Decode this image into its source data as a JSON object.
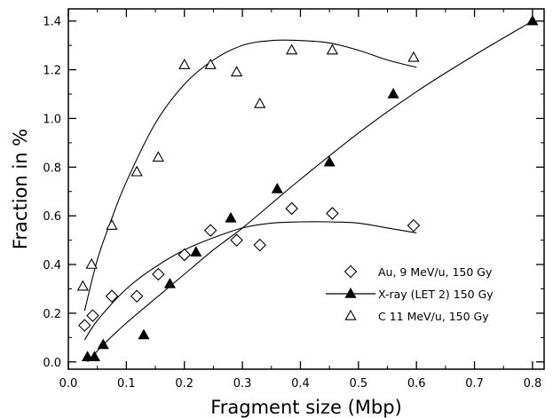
{
  "chart_data": {
    "type": "scatter",
    "title": "",
    "xlabel": "Fragment size (Mbp)",
    "ylabel": "Fraction in %",
    "xlim": [
      0.0,
      0.82
    ],
    "ylim": [
      -0.03,
      1.45
    ],
    "xticks": [
      0.0,
      0.1,
      0.2,
      0.3,
      0.4,
      0.5,
      0.6,
      0.7,
      0.8
    ],
    "yticks": [
      0.0,
      0.2,
      0.4,
      0.6,
      0.8,
      1.0,
      1.2,
      1.4
    ],
    "xtick_labels": [
      "0.0",
      "0.1",
      "0.2",
      "0.3",
      "0.4",
      "0.5",
      "0.6",
      "0.7",
      "0.8"
    ],
    "ytick_labels": [
      "0.0",
      "0.2",
      "0.4",
      "0.6",
      "0.8",
      "1.0",
      "1.2",
      "1.4"
    ],
    "grid": false,
    "legend_position": "lower-right",
    "series": [
      {
        "name": "Au, 9 MeV/u, 150 Gy",
        "marker": "diamond-open",
        "x": [
          0.028,
          0.042,
          0.075,
          0.118,
          0.155,
          0.2,
          0.245,
          0.29,
          0.33,
          0.385,
          0.455,
          0.595
        ],
        "y": [
          0.15,
          0.19,
          0.27,
          0.27,
          0.36,
          0.44,
          0.54,
          0.5,
          0.48,
          0.63,
          0.61,
          0.56
        ],
        "fit": [
          [
            0.028,
            0.09
          ],
          [
            0.05,
            0.17
          ],
          [
            0.1,
            0.3
          ],
          [
            0.15,
            0.39
          ],
          [
            0.2,
            0.46
          ],
          [
            0.25,
            0.51
          ],
          [
            0.3,
            0.55
          ],
          [
            0.35,
            0.57
          ],
          [
            0.4,
            0.575
          ],
          [
            0.45,
            0.575
          ],
          [
            0.5,
            0.57
          ],
          [
            0.55,
            0.55
          ],
          [
            0.6,
            0.53
          ]
        ]
      },
      {
        "name": "X-ray (LET 2) 150 Gy",
        "marker": "triangle-filled",
        "x": [
          0.033,
          0.045,
          0.06,
          0.13,
          0.175,
          0.22,
          0.28,
          0.36,
          0.45,
          0.56,
          0.8
        ],
        "y": [
          0.02,
          0.02,
          0.07,
          0.11,
          0.32,
          0.45,
          0.59,
          0.71,
          0.82,
          1.1,
          1.4
        ],
        "fit": [
          [
            0.033,
            0.0
          ],
          [
            0.06,
            0.07
          ],
          [
            0.1,
            0.16
          ],
          [
            0.15,
            0.26
          ],
          [
            0.2,
            0.36
          ],
          [
            0.25,
            0.46
          ],
          [
            0.3,
            0.55
          ],
          [
            0.35,
            0.65
          ],
          [
            0.4,
            0.75
          ],
          [
            0.5,
            0.94
          ],
          [
            0.6,
            1.11
          ],
          [
            0.7,
            1.26
          ],
          [
            0.8,
            1.4
          ]
        ]
      },
      {
        "name": "C 11 MeV/u, 150 Gy",
        "marker": "triangle-open",
        "x": [
          0.025,
          0.04,
          0.075,
          0.118,
          0.155,
          0.2,
          0.245,
          0.29,
          0.33,
          0.385,
          0.455,
          0.595
        ],
        "y": [
          0.31,
          0.4,
          0.56,
          0.78,
          0.84,
          1.22,
          1.22,
          1.19,
          1.06,
          1.28,
          1.28,
          1.25
        ],
        "fit": [
          [
            0.028,
            0.21
          ],
          [
            0.05,
            0.42
          ],
          [
            0.075,
            0.59
          ],
          [
            0.1,
            0.74
          ],
          [
            0.15,
            0.98
          ],
          [
            0.2,
            1.14
          ],
          [
            0.25,
            1.24
          ],
          [
            0.3,
            1.3
          ],
          [
            0.35,
            1.32
          ],
          [
            0.4,
            1.32
          ],
          [
            0.45,
            1.31
          ],
          [
            0.5,
            1.28
          ],
          [
            0.55,
            1.24
          ],
          [
            0.6,
            1.21
          ]
        ]
      }
    ]
  }
}
